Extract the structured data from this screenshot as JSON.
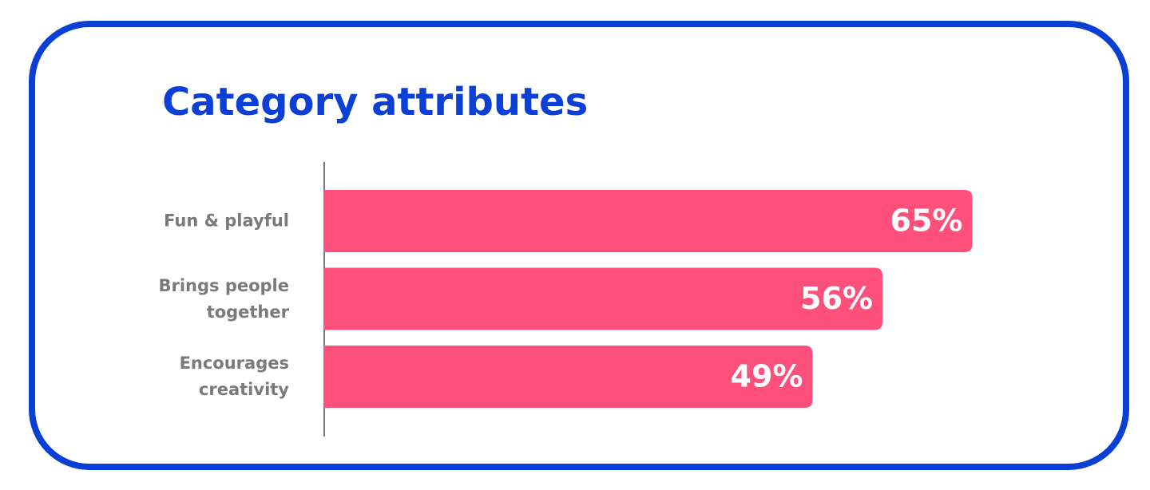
{
  "chart_data": {
    "type": "bar",
    "title": "Category attributes",
    "categories": [
      "Fun & playful",
      "Brings people together",
      "Encourages creativity"
    ],
    "values": [
      65,
      56,
      49
    ],
    "value_labels": [
      "65%",
      "56%",
      "49%"
    ],
    "color": "#ff4f7b"
  }
}
